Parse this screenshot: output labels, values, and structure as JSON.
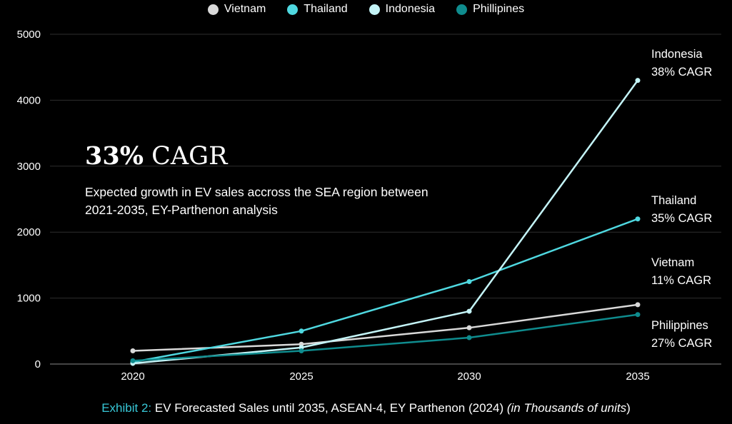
{
  "legend": [
    {
      "label": "Vietnam",
      "color": "#d9d9d9"
    },
    {
      "label": "Thailand",
      "color": "#4fd8e0"
    },
    {
      "label": "Indonesia",
      "color": "#c4f4f7"
    },
    {
      "label": "Phillipines",
      "color": "#0f8c8e"
    }
  ],
  "headline": {
    "bold": "33%",
    "rest": " CAGR"
  },
  "subtitle": "Expected growth in EV sales accross the SEA region between 2021-2035, EY-Parthenon analysis",
  "end_labels": [
    {
      "name": "Indonesia",
      "cagr": "38% CAGR"
    },
    {
      "name": "Thailand",
      "cagr": "35% CAGR"
    },
    {
      "name": "Vietnam",
      "cagr": "11% CAGR"
    },
    {
      "name": "Philippines",
      "cagr": "27% CAGR"
    }
  ],
  "caption": {
    "exhibit": "Exhibit 2:",
    "text": " EV Forecasted Sales until 2035, ASEAN-4, EY Parthenon (2024) ",
    "unit": "(in Thousands of units",
    "close": ")"
  },
  "chart_data": {
    "type": "line",
    "title": "",
    "xlabel": "",
    "ylabel": "",
    "x": [
      2020,
      2025,
      2030,
      2035
    ],
    "ylim": [
      0,
      5000
    ],
    "yticks": [
      0,
      1000,
      2000,
      3000,
      4000,
      5000
    ],
    "grid": true,
    "legend_position": "top-center",
    "series": [
      {
        "name": "Vietnam",
        "color": "#d9d9d9",
        "values": [
          200,
          300,
          550,
          900
        ]
      },
      {
        "name": "Thailand",
        "color": "#4fd8e0",
        "values": [
          30,
          500,
          1250,
          2200
        ]
      },
      {
        "name": "Indonesia",
        "color": "#c4f4f7",
        "values": [
          10,
          250,
          800,
          4300
        ]
      },
      {
        "name": "Phillipines",
        "color": "#0f8c8e",
        "values": [
          50,
          200,
          400,
          750
        ]
      }
    ]
  }
}
